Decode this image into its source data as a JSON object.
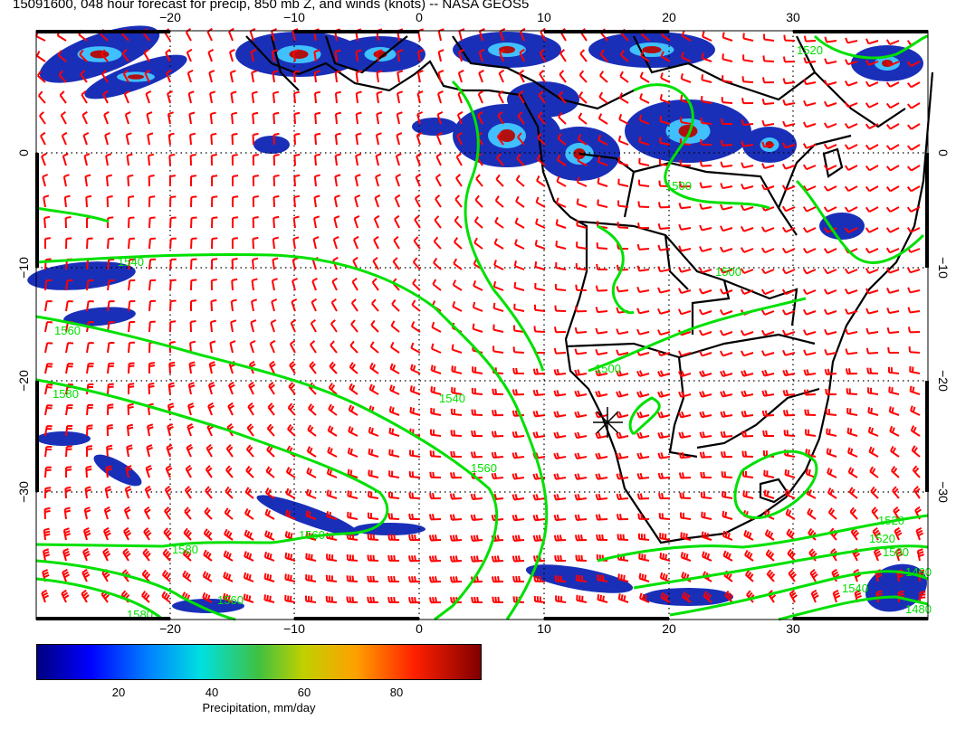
{
  "title": "15091600, 048 hour forecast for precip, 850 mb Z, and winds (knots) -- NASA GEOS5",
  "map": {
    "lon_ticks": [
      "−20",
      "−10",
      "0",
      "10",
      "20",
      "30"
    ],
    "lat_ticks": [
      "0",
      "−10",
      "−20",
      "−30"
    ],
    "contour_labels": [
      "1540",
      "1560",
      "1580",
      "1540",
      "1560",
      "1520",
      "1500",
      "1500",
      "1500",
      "1520",
      "1580",
      "1560",
      "1560",
      "1580",
      "1520",
      "1500",
      "1540",
      "1460",
      "1480"
    ],
    "colors": {
      "contour": "#00e000",
      "wind_barb": "#ff0000",
      "coastline": "#000000",
      "grid": "#000000"
    }
  },
  "colorbar": {
    "ticks": [
      "20",
      "40",
      "60",
      "80"
    ],
    "label": "Precipitation, mm/day",
    "colors": [
      "#000080",
      "#0000ff",
      "#0080ff",
      "#00e0e0",
      "#40c040",
      "#c0d000",
      "#ffa000",
      "#ff2000",
      "#800000"
    ]
  }
}
